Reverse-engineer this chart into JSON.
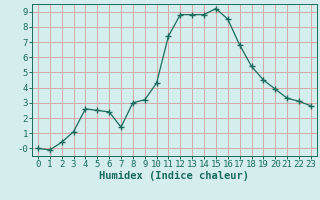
{
  "x": [
    0,
    1,
    2,
    3,
    4,
    5,
    6,
    7,
    8,
    9,
    10,
    11,
    12,
    13,
    14,
    15,
    16,
    17,
    18,
    19,
    20,
    21,
    22,
    23
  ],
  "y": [
    0.0,
    -0.1,
    0.4,
    1.1,
    2.6,
    2.5,
    2.4,
    1.4,
    3.0,
    3.2,
    4.3,
    7.4,
    8.8,
    8.8,
    8.8,
    9.2,
    8.5,
    6.8,
    5.4,
    4.5,
    3.9,
    3.3,
    3.1,
    2.8
  ],
  "line_color": "#1a6b5c",
  "marker": "+",
  "marker_size": 4,
  "bg_color": "#d4eeee",
  "grid_color": "#d8a8a8",
  "xlabel": "Humidex (Indice chaleur)",
  "ylim": [
    -0.5,
    9.5
  ],
  "xlim": [
    -0.5,
    23.5
  ],
  "yticks": [
    0,
    1,
    2,
    3,
    4,
    5,
    6,
    7,
    8,
    9
  ],
  "ytick_labels": [
    "-0",
    "1",
    "2",
    "3",
    "4",
    "5",
    "6",
    "7",
    "8",
    "9"
  ],
  "xticks": [
    0,
    1,
    2,
    3,
    4,
    5,
    6,
    7,
    8,
    9,
    10,
    11,
    12,
    13,
    14,
    15,
    16,
    17,
    18,
    19,
    20,
    21,
    22,
    23
  ],
  "tick_label_fontsize": 6.5,
  "xlabel_fontsize": 7.5,
  "tick_color": "#1a6b5c",
  "label_color": "#1a6b5c",
  "line_width": 0.9,
  "marker_edge_width": 1.0
}
